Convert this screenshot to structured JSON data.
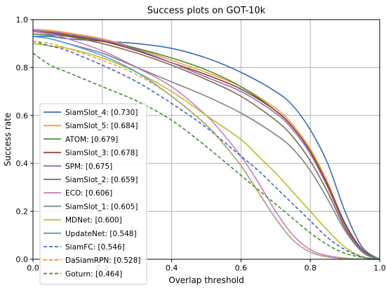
{
  "chart_data": {
    "type": "line",
    "title": "Success plots on GOT-10k",
    "xlabel": "Overlap threshold",
    "ylabel": "Success rate",
    "xlim": [
      0,
      1
    ],
    "ylim": [
      0,
      1
    ],
    "xticks": [
      "0.0",
      "0.2",
      "0.4",
      "0.6",
      "0.8",
      "1.0"
    ],
    "yticks": [
      "0.0",
      "0.2",
      "0.4",
      "0.6",
      "0.8",
      "1.0"
    ],
    "grid": true,
    "legend_position": "lower-left",
    "series": [
      {
        "name": "SiamSlot_4: [0.730]",
        "color": "#3a6ab7",
        "dash": "solid",
        "x": [
          0,
          0.05,
          0.1,
          0.2,
          0.3,
          0.4,
          0.5,
          0.6,
          0.7,
          0.75,
          0.8,
          0.85,
          0.9,
          0.95,
          1.0
        ],
        "y": [
          0.93,
          0.93,
          0.92,
          0.91,
          0.9,
          0.88,
          0.84,
          0.78,
          0.7,
          0.64,
          0.54,
          0.4,
          0.2,
          0.05,
          0.0
        ]
      },
      {
        "name": "SiamSlot_5: [0.684]",
        "color": "#f0a030",
        "dash": "solid",
        "x": [
          0,
          0.05,
          0.1,
          0.2,
          0.3,
          0.4,
          0.5,
          0.6,
          0.7,
          0.75,
          0.8,
          0.85,
          0.9,
          0.95,
          1.0
        ],
        "y": [
          0.96,
          0.955,
          0.945,
          0.92,
          0.88,
          0.83,
          0.78,
          0.72,
          0.63,
          0.56,
          0.46,
          0.32,
          0.15,
          0.04,
          0.0
        ]
      },
      {
        "name": "ATOM: [0.679]",
        "color": "#3d8f2e",
        "dash": "solid",
        "x": [
          0,
          0.05,
          0.1,
          0.2,
          0.3,
          0.4,
          0.5,
          0.6,
          0.7,
          0.75,
          0.8,
          0.85,
          0.9,
          0.95,
          1.0
        ],
        "y": [
          0.94,
          0.935,
          0.93,
          0.91,
          0.88,
          0.84,
          0.79,
          0.72,
          0.62,
          0.55,
          0.45,
          0.31,
          0.15,
          0.04,
          0.0
        ]
      },
      {
        "name": "SiamSlot_3: [0.678]",
        "color": "#8b3a2f",
        "dash": "solid",
        "x": [
          0,
          0.05,
          0.1,
          0.2,
          0.3,
          0.4,
          0.5,
          0.6,
          0.7,
          0.75,
          0.8,
          0.85,
          0.9,
          0.95,
          1.0
        ],
        "y": [
          0.95,
          0.945,
          0.935,
          0.91,
          0.87,
          0.82,
          0.77,
          0.71,
          0.62,
          0.55,
          0.45,
          0.31,
          0.15,
          0.04,
          0.0
        ]
      },
      {
        "name": "SPM: [0.675]",
        "color": "#9467bd",
        "dash": "solid",
        "x": [
          0,
          0.05,
          0.1,
          0.2,
          0.3,
          0.4,
          0.5,
          0.6,
          0.7,
          0.75,
          0.8,
          0.85,
          0.9,
          0.95,
          1.0
        ],
        "y": [
          0.955,
          0.95,
          0.94,
          0.915,
          0.875,
          0.82,
          0.76,
          0.7,
          0.61,
          0.54,
          0.44,
          0.3,
          0.14,
          0.035,
          0.0
        ]
      },
      {
        "name": "SiamSlot_2: [0.659]",
        "color": "#7f6a4f",
        "dash": "solid",
        "x": [
          0,
          0.05,
          0.1,
          0.2,
          0.3,
          0.4,
          0.5,
          0.6,
          0.7,
          0.75,
          0.8,
          0.85,
          0.9,
          0.95,
          1.0
        ],
        "y": [
          0.95,
          0.94,
          0.93,
          0.9,
          0.86,
          0.81,
          0.75,
          0.68,
          0.58,
          0.51,
          0.41,
          0.28,
          0.13,
          0.03,
          0.0
        ]
      },
      {
        "name": "ECO: [0.606]",
        "color": "#cc79c7",
        "dash": "solid",
        "x": [
          0,
          0.05,
          0.1,
          0.2,
          0.3,
          0.4,
          0.5,
          0.55,
          0.6,
          0.65,
          0.7,
          0.75,
          0.8,
          0.85,
          0.9,
          0.95,
          1.0
        ],
        "y": [
          0.95,
          0.94,
          0.92,
          0.87,
          0.8,
          0.72,
          0.6,
          0.52,
          0.43,
          0.32,
          0.2,
          0.1,
          0.04,
          0.015,
          0.005,
          0.001,
          0.0
        ]
      },
      {
        "name": "SiamSlot_1: [0.605]",
        "color": "#808080",
        "dash": "solid",
        "x": [
          0,
          0.05,
          0.1,
          0.2,
          0.3,
          0.4,
          0.5,
          0.6,
          0.7,
          0.75,
          0.8,
          0.85,
          0.9,
          0.95,
          1.0
        ],
        "y": [
          0.93,
          0.92,
          0.9,
          0.86,
          0.8,
          0.74,
          0.68,
          0.61,
          0.52,
          0.46,
          0.37,
          0.25,
          0.12,
          0.03,
          0.0
        ]
      },
      {
        "name": "MDNet: [0.600]",
        "color": "#bcbd22",
        "dash": "solid",
        "x": [
          0,
          0.05,
          0.1,
          0.2,
          0.3,
          0.4,
          0.5,
          0.6,
          0.65,
          0.7,
          0.75,
          0.8,
          0.85,
          0.9,
          0.95,
          1.0
        ],
        "y": [
          0.9,
          0.89,
          0.88,
          0.84,
          0.78,
          0.7,
          0.6,
          0.5,
          0.43,
          0.36,
          0.28,
          0.2,
          0.12,
          0.05,
          0.01,
          0.0
        ]
      },
      {
        "name": "UpdateNet: [0.548]",
        "color": "#4aa3df",
        "dash": "solid",
        "x": [
          0,
          0.05,
          0.1,
          0.2,
          0.3,
          0.4,
          0.5,
          0.55,
          0.6,
          0.65,
          0.7,
          0.75,
          0.8,
          0.85,
          0.9,
          0.95,
          1.0
        ],
        "y": [
          0.93,
          0.92,
          0.9,
          0.85,
          0.78,
          0.68,
          0.56,
          0.48,
          0.39,
          0.28,
          0.17,
          0.08,
          0.03,
          0.01,
          0.003,
          0.001,
          0.0
        ]
      },
      {
        "name": "SiamFC: [0.546]",
        "color": "#3a6ab7",
        "dash": "dashed",
        "x": [
          0,
          0.05,
          0.1,
          0.2,
          0.3,
          0.4,
          0.5,
          0.6,
          0.65,
          0.7,
          0.75,
          0.8,
          0.85,
          0.9,
          0.95,
          1.0
        ],
        "y": [
          0.91,
          0.89,
          0.87,
          0.81,
          0.74,
          0.65,
          0.55,
          0.43,
          0.37,
          0.3,
          0.23,
          0.16,
          0.09,
          0.04,
          0.01,
          0.0
        ]
      },
      {
        "name": "DaSiamRPN: [0.528]",
        "color": "#f0a030",
        "dash": "dashed",
        "x": [
          0,
          0.05,
          0.1,
          0.2,
          0.3,
          0.4,
          0.5,
          0.55,
          0.6,
          0.65,
          0.7,
          0.75,
          0.8,
          0.85,
          0.9,
          0.95,
          1.0
        ],
        "y": [
          0.91,
          0.9,
          0.88,
          0.83,
          0.77,
          0.68,
          0.56,
          0.48,
          0.39,
          0.28,
          0.17,
          0.08,
          0.03,
          0.01,
          0.003,
          0.001,
          0.0
        ]
      },
      {
        "name": "Goturn: [0.464]",
        "color": "#3d8f2e",
        "dash": "dashed",
        "x": [
          0,
          0.05,
          0.1,
          0.2,
          0.3,
          0.4,
          0.5,
          0.6,
          0.7,
          0.75,
          0.8,
          0.85,
          0.9,
          0.95,
          1.0
        ],
        "y": [
          0.86,
          0.81,
          0.78,
          0.72,
          0.66,
          0.58,
          0.47,
          0.35,
          0.23,
          0.17,
          0.11,
          0.06,
          0.025,
          0.008,
          0.0
        ]
      }
    ]
  }
}
